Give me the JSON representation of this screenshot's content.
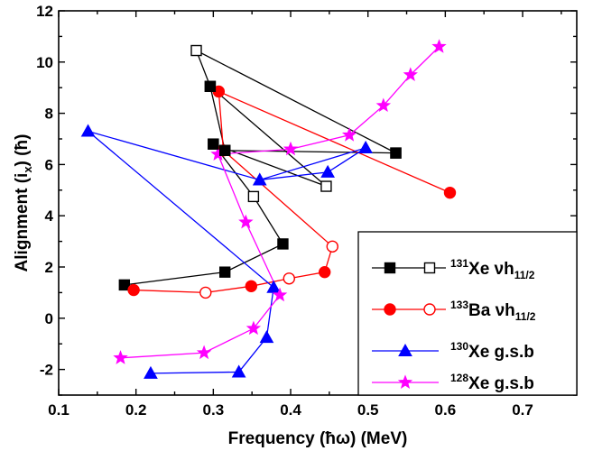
{
  "chart_data": {
    "type": "scatter",
    "xlabel": "Frequency (ħω) (MeV)",
    "ylabel": "Alignment (i",
    "ylabel_sub": "x",
    "ylabel_tail": ") (ħ)",
    "xlim": [
      0.1,
      0.77
    ],
    "ylim": [
      -3,
      12
    ],
    "xticks": [
      0.1,
      0.2,
      0.3,
      0.4,
      0.5,
      0.6,
      0.7
    ],
    "xtick_labels": [
      "0.1",
      "0.2",
      "0.3",
      "0.4",
      "0.5",
      "0.6",
      "0.7"
    ],
    "yticks": [
      -2,
      0,
      2,
      4,
      6,
      8,
      10,
      12
    ],
    "ytick_labels": [
      "-2",
      "0",
      "2",
      "4",
      "6",
      "8",
      "10",
      "12"
    ],
    "legend_position": "bottom-right",
    "series": [
      {
        "key": "xe131_filled",
        "color": "#000000",
        "marker": "square",
        "filled": true,
        "x": [
          0.185,
          0.315,
          0.39
        ],
        "y": [
          1.3,
          1.8,
          2.9
        ]
      },
      {
        "key": "xe131_open",
        "color": "#000000",
        "marker": "square",
        "filled": false,
        "x": [
          0.278,
          0.296,
          0.446,
          0.3,
          0.352,
          0.315,
          0.536
        ],
        "y": [
          10.45,
          9.05,
          5.15,
          6.8,
          4.75,
          6.55,
          6.45
        ]
      },
      {
        "key": "xe131_links_filled",
        "color": "#000000",
        "marker": "square",
        "filled": true,
        "points_idx": [
          1,
          3,
          5,
          6
        ],
        "note": ""
      },
      {
        "key": "ba133_filled",
        "color": "#ff0000",
        "marker": "circle",
        "filled": true,
        "x": [
          0.197,
          0.349,
          0.444,
          0.307,
          0.313,
          0.606
        ],
        "y": [
          1.1,
          1.25,
          1.8,
          8.85,
          6.55,
          4.9
        ]
      },
      {
        "key": "ba133_open",
        "color": "#ff0000",
        "marker": "circle",
        "filled": false,
        "x": [
          0.29,
          0.398,
          0.454
        ],
        "y": [
          1.0,
          1.55,
          2.8
        ]
      },
      {
        "key": "xe130",
        "color": "#0000ff",
        "marker": "triangle",
        "filled": true,
        "x": [
          0.138,
          0.378,
          0.36,
          0.448,
          0.497,
          0.369,
          0.333,
          0.219
        ],
        "y": [
          7.3,
          1.2,
          5.4,
          5.7,
          6.65,
          -0.75,
          -2.1,
          -2.15
        ]
      },
      {
        "key": "xe128",
        "color": "#ff00ff",
        "marker": "star",
        "filled": true,
        "x": [
          0.18,
          0.288,
          0.352,
          0.386,
          0.342,
          0.306,
          0.4,
          0.476,
          0.52,
          0.555,
          0.592
        ],
        "y": [
          -1.55,
          -1.35,
          -0.4,
          0.9,
          3.75,
          6.4,
          6.6,
          7.15,
          8.3,
          9.5,
          10.6
        ]
      }
    ],
    "paths": [
      {
        "color": "#000000",
        "x": [
          0.185,
          0.315,
          0.39,
          0.352,
          0.3,
          0.446,
          0.296,
          0.315,
          0.536,
          0.278,
          0.296
        ],
        "y": [
          1.3,
          1.8,
          2.9,
          4.75,
          6.8,
          5.15,
          9.05,
          6.55,
          6.45,
          10.45,
          9.05
        ]
      },
      {
        "color": "#ff0000",
        "x": [
          0.197,
          0.29,
          0.349,
          0.398,
          0.444,
          0.454,
          0.313,
          0.307,
          0.606
        ],
        "y": [
          1.1,
          1.0,
          1.25,
          1.55,
          1.8,
          2.8,
          6.55,
          8.85,
          4.9
        ]
      },
      {
        "color": "#0000ff",
        "x": [
          0.219,
          0.333,
          0.369,
          0.378,
          0.138,
          0.36,
          0.448,
          0.497,
          0.36
        ],
        "y": [
          -2.15,
          -2.1,
          -0.75,
          1.2,
          7.3,
          5.4,
          5.7,
          6.65,
          5.4
        ]
      },
      {
        "color": "#ff00ff",
        "x": [
          0.18,
          0.288,
          0.352,
          0.386,
          0.342,
          0.306,
          0.4,
          0.476,
          0.52,
          0.555,
          0.592
        ],
        "y": [
          -1.55,
          -1.35,
          -0.4,
          0.9,
          3.75,
          6.4,
          6.6,
          7.15,
          8.3,
          9.5,
          10.6
        ]
      }
    ],
    "legend": [
      {
        "mass": "131",
        "element": "Xe",
        "label": "νh",
        "sub": "11/2",
        "color": "#000000",
        "marker": "square",
        "pair": true
      },
      {
        "mass": "133",
        "element": "Ba",
        "label": "νh",
        "sub": "11/2",
        "color": "#ff0000",
        "marker": "circle",
        "pair": true
      },
      {
        "mass": "130",
        "element": "Xe",
        "label": "g.s.b",
        "sub": "",
        "color": "#0000ff",
        "marker": "triangle",
        "pair": false
      },
      {
        "mass": "128",
        "element": "Xe",
        "label": "g.s.b",
        "sub": "",
        "color": "#ff00ff",
        "marker": "star",
        "pair": false
      }
    ]
  }
}
